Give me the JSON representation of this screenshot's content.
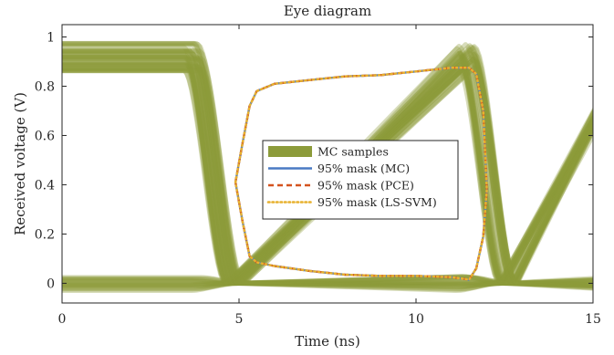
{
  "chart_data": {
    "type": "line",
    "title": "Eye diagram",
    "xlabel": "Time (ns)",
    "ylabel": "Received voltage (V)",
    "xlim": [
      0,
      15
    ],
    "ylim": [
      -0.08,
      1.05
    ],
    "xticks": [
      0,
      5,
      10,
      15
    ],
    "yticks": [
      0,
      0.2,
      0.4,
      0.6,
      0.8,
      1
    ],
    "xtick_labels": [
      "0",
      "5",
      "10",
      "15"
    ],
    "ytick_labels": [
      "0",
      "0.2",
      "0.4",
      "0.6",
      "0.8",
      "1"
    ],
    "grid": false,
    "legend_position": "center",
    "series": [
      {
        "name": "MC samples",
        "color": "#8c9b3a",
        "style": "band",
        "high_level": [
          0.86,
          0.975
        ],
        "low_level": [
          -0.03,
          0.03
        ],
        "crossings_ns": [
          4.3,
          12.0
        ]
      },
      {
        "name": "95% mask (MC)",
        "color": "#4a7ac4",
        "style": "solid",
        "upper": {
          "x": [
            4.9,
            5.1,
            5.3,
            5.5,
            6,
            7,
            8,
            9,
            10,
            11,
            11.5,
            11.7,
            11.9,
            12.0
          ],
          "y": [
            0.41,
            0.57,
            0.72,
            0.78,
            0.81,
            0.825,
            0.84,
            0.845,
            0.86,
            0.875,
            0.875,
            0.85,
            0.7,
            0.38
          ]
        },
        "lower": {
          "x": [
            4.9,
            5.1,
            5.3,
            5.5,
            6,
            7,
            8,
            9,
            10,
            11,
            11.5,
            11.7,
            11.9,
            12.0
          ],
          "y": [
            0.41,
            0.25,
            0.11,
            0.085,
            0.07,
            0.05,
            0.035,
            0.03,
            0.03,
            0.025,
            0.015,
            0.06,
            0.19,
            0.38
          ]
        }
      },
      {
        "name": "95% mask (PCE)",
        "color": "#d4531f",
        "style": "dashed"
      },
      {
        "name": "95% mask (LS-SVM)",
        "color": "#e7b12e",
        "style": "dotted"
      }
    ]
  }
}
